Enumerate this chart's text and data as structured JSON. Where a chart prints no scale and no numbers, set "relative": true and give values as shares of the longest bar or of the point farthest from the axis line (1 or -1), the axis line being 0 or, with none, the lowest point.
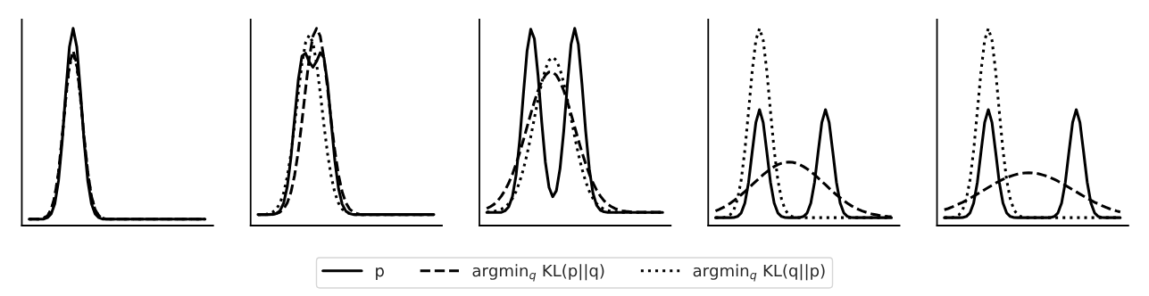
{
  "chart_data": [
    {
      "type": "line",
      "relative": true,
      "legend": "bottom",
      "categories": [
        null,
        null,
        null,
        null,
        null,
        null,
        null,
        null,
        null,
        null,
        null,
        null,
        null,
        null,
        null,
        null,
        null,
        null,
        null,
        null,
        null,
        null,
        null,
        null,
        null,
        null,
        null,
        null,
        null,
        null,
        null,
        null,
        null,
        null,
        null,
        null,
        null,
        null,
        null,
        null,
        null,
        null,
        null,
        null,
        null,
        null,
        null,
        null,
        null
      ],
      "series": [
        {
          "name": "p",
          "color": "#000000",
          "line_style": "solid",
          "values": [
            0.033,
            0.033,
            0.033,
            0.033,
            0.033,
            0.04,
            0.059,
            0.111,
            0.226,
            0.425,
            0.68,
            0.907,
            1.0,
            0.907,
            0.68,
            0.425,
            0.226,
            0.111,
            0.059,
            0.04,
            0.033,
            0.033,
            0.033,
            0.033,
            0.033,
            0.033,
            0.033,
            0.033,
            0.033,
            0.033,
            0.033,
            0.033,
            0.033,
            0.033,
            0.033,
            0.033,
            0.033,
            0.033,
            0.033,
            0.033,
            0.033,
            0.033,
            0.033,
            0.033,
            0.033,
            0.033,
            0.033,
            0.033,
            0.033
          ]
        },
        {
          "name": "argmin$_{q}$ KL(p||q)",
          "color": "#000000",
          "line_style": "dashed",
          "values": [
            0.033,
            0.033,
            0.033,
            0.033,
            0.038,
            0.05,
            0.081,
            0.148,
            0.27,
            0.448,
            0.652,
            0.82,
            0.886,
            0.82,
            0.652,
            0.448,
            0.27,
            0.148,
            0.081,
            0.05,
            0.038,
            0.033,
            0.033,
            0.033,
            0.033,
            0.033,
            0.033,
            0.033,
            0.033,
            0.033,
            0.033,
            0.033,
            0.033,
            0.033,
            0.033,
            0.033,
            0.033,
            0.033,
            0.033,
            0.033,
            0.033,
            0.033,
            0.033,
            0.033,
            0.033,
            0.033,
            0.033,
            0.033,
            0.033
          ]
        },
        {
          "name": "argmin$_{q}$ KL(q||p)",
          "color": "#000000",
          "line_style": "dotted",
          "values": [
            0.033,
            0.033,
            0.033,
            0.033,
            0.038,
            0.05,
            0.08,
            0.146,
            0.267,
            0.442,
            0.643,
            0.808,
            0.873,
            0.808,
            0.643,
            0.442,
            0.267,
            0.146,
            0.08,
            0.05,
            0.038,
            0.033,
            0.033,
            0.033,
            0.033,
            0.033,
            0.033,
            0.033,
            0.033,
            0.033,
            0.033,
            0.033,
            0.033,
            0.033,
            0.033,
            0.033,
            0.033,
            0.033,
            0.033,
            0.033,
            0.033,
            0.033,
            0.033,
            0.033,
            0.033,
            0.033,
            0.033,
            0.033,
            0.033
          ]
        }
      ]
    },
    {
      "type": "line",
      "relative": true,
      "categories": [
        null,
        null,
        null,
        null,
        null,
        null,
        null,
        null,
        null,
        null,
        null,
        null,
        null,
        null,
        null,
        null,
        null,
        null,
        null,
        null,
        null,
        null,
        null,
        null,
        null,
        null,
        null,
        null,
        null,
        null,
        null,
        null,
        null,
        null,
        null,
        null,
        null,
        null,
        null,
        null,
        null,
        null,
        null,
        null,
        null,
        null,
        null,
        null,
        null
      ],
      "series": [
        {
          "color": "#000000",
          "line_style": "solid",
          "values": [
            0.056,
            0.056,
            0.056,
            0.056,
            0.057,
            0.061,
            0.075,
            0.113,
            0.197,
            0.344,
            0.543,
            0.738,
            0.859,
            0.874,
            0.829,
            0.803,
            0.833,
            0.877,
            0.852,
            0.721,
            0.52,
            0.326,
            0.186,
            0.108,
            0.073,
            0.061,
            0.056,
            0.056,
            0.056,
            0.056,
            0.056,
            0.056,
            0.056,
            0.056,
            0.056,
            0.056,
            0.056,
            0.056,
            0.056,
            0.056,
            0.056,
            0.056,
            0.056,
            0.056,
            0.056,
            0.056,
            0.056,
            0.056,
            0.056
          ]
        },
        {
          "color": "#000000",
          "line_style": "dashed",
          "values": [
            0.056,
            0.056,
            0.056,
            0.056,
            0.056,
            0.061,
            0.068,
            0.084,
            0.115,
            0.169,
            0.255,
            0.376,
            0.528,
            0.695,
            0.85,
            0.96,
            1.0,
            0.96,
            0.85,
            0.695,
            0.528,
            0.376,
            0.255,
            0.169,
            0.115,
            0.084,
            0.068,
            0.061,
            0.056,
            0.056,
            0.056,
            0.056,
            0.056,
            0.056,
            0.056,
            0.056,
            0.056,
            0.056,
            0.056,
            0.056,
            0.056,
            0.056,
            0.056,
            0.056,
            0.056,
            0.056,
            0.056,
            0.056,
            0.056
          ]
        },
        {
          "color": "#000000",
          "line_style": "dotted",
          "values": [
            0.056,
            0.056,
            0.056,
            0.061,
            0.068,
            0.083,
            0.113,
            0.165,
            0.248,
            0.364,
            0.511,
            0.672,
            0.821,
            0.928,
            0.966,
            0.928,
            0.821,
            0.672,
            0.511,
            0.364,
            0.248,
            0.165,
            0.113,
            0.083,
            0.068,
            0.061,
            0.056,
            0.056,
            0.056,
            0.056,
            0.056,
            0.056,
            0.056,
            0.056,
            0.056,
            0.056,
            0.056,
            0.056,
            0.056,
            0.056,
            0.056,
            0.056,
            0.056,
            0.056,
            0.056,
            0.056,
            0.056,
            0.056,
            0.056
          ]
        }
      ]
    },
    {
      "type": "line",
      "relative": true,
      "categories": [
        null,
        null,
        null,
        null,
        null,
        null,
        null,
        null,
        null,
        null,
        null,
        null,
        null,
        null,
        null,
        null,
        null,
        null,
        null,
        null,
        null,
        null,
        null,
        null,
        null,
        null,
        null,
        null,
        null,
        null,
        null,
        null,
        null,
        null,
        null,
        null,
        null,
        null,
        null,
        null,
        null,
        null,
        null,
        null,
        null,
        null,
        null,
        null,
        null
      ],
      "series": [
        {
          "color": "#000000",
          "line_style": "solid",
          "values": [
            0.067,
            0.067,
            0.067,
            0.067,
            0.067,
            0.075,
            0.095,
            0.147,
            0.255,
            0.435,
            0.668,
            0.885,
            0.996,
            0.947,
            0.762,
            0.525,
            0.321,
            0.193,
            0.146,
            0.177,
            0.289,
            0.478,
            0.715,
            0.919,
            1.0,
            0.919,
            0.715,
            0.478,
            0.285,
            0.163,
            0.102,
            0.078,
            0.07,
            0.067,
            0.067,
            0.067,
            0.067,
            0.067,
            0.067,
            0.067,
            0.067,
            0.067,
            0.067,
            0.067,
            0.067,
            0.067,
            0.067,
            0.067,
            0.067
          ]
        },
        {
          "color": "#000000",
          "line_style": "dashed",
          "values": [
            0.086,
            0.096,
            0.108,
            0.126,
            0.15,
            0.179,
            0.216,
            0.26,
            0.313,
            0.37,
            0.434,
            0.5,
            0.566,
            0.629,
            0.685,
            0.73,
            0.762,
            0.779,
            0.779,
            0.762,
            0.73,
            0.685,
            0.629,
            0.566,
            0.5,
            0.434,
            0.37,
            0.313,
            0.26,
            0.216,
            0.179,
            0.15,
            0.126,
            0.108,
            0.096,
            0.086,
            0.079,
            0.075,
            0.072,
            0.07,
            0.068,
            0.068,
            0.068,
            0.068,
            0.068,
            0.068,
            0.068,
            0.068,
            0.068
          ]
        },
        {
          "color": "#000000",
          "line_style": "dotted",
          "values": [
            0.069,
            0.069,
            0.072,
            0.076,
            0.083,
            0.094,
            0.111,
            0.137,
            0.173,
            0.223,
            0.286,
            0.362,
            0.45,
            0.545,
            0.638,
            0.724,
            0.793,
            0.838,
            0.854,
            0.838,
            0.793,
            0.724,
            0.638,
            0.545,
            0.45,
            0.362,
            0.286,
            0.223,
            0.173,
            0.137,
            0.111,
            0.094,
            0.083,
            0.076,
            0.072,
            0.069,
            0.069,
            0.067,
            0.067,
            0.067,
            0.067,
            0.067,
            0.067,
            0.067,
            0.067,
            0.067,
            0.067,
            0.067,
            0.067
          ]
        }
      ]
    },
    {
      "type": "line",
      "relative": true,
      "categories": [
        null,
        null,
        null,
        null,
        null,
        null,
        null,
        null,
        null,
        null,
        null,
        null,
        null,
        null,
        null,
        null,
        null,
        null,
        null,
        null,
        null,
        null,
        null,
        null,
        null,
        null,
        null,
        null,
        null,
        null,
        null,
        null,
        null,
        null,
        null,
        null,
        null,
        null,
        null,
        null,
        null,
        null,
        null,
        null,
        null,
        null,
        null,
        null,
        null
      ],
      "series": [
        {
          "color": "#000000",
          "line_style": "solid",
          "values": [
            0.04,
            0.04,
            0.04,
            0.04,
            0.04,
            0.041,
            0.046,
            0.064,
            0.114,
            0.218,
            0.373,
            0.523,
            0.588,
            0.523,
            0.373,
            0.218,
            0.114,
            0.064,
            0.046,
            0.041,
            0.04,
            0.04,
            0.04,
            0.041,
            0.046,
            0.064,
            0.114,
            0.218,
            0.373,
            0.523,
            0.588,
            0.523,
            0.373,
            0.218,
            0.114,
            0.064,
            0.046,
            0.041,
            0.04,
            0.04,
            0.04,
            0.04,
            0.04,
            0.04,
            0.04,
            0.04,
            0.04,
            0.04,
            0.04
          ]
        },
        {
          "color": "#000000",
          "line_style": "dashed",
          "values": [
            0.074,
            0.082,
            0.091,
            0.101,
            0.113,
            0.126,
            0.141,
            0.156,
            0.172,
            0.189,
            0.207,
            0.224,
            0.241,
            0.258,
            0.273,
            0.287,
            0.299,
            0.309,
            0.316,
            0.321,
            0.322,
            0.321,
            0.316,
            0.309,
            0.299,
            0.287,
            0.273,
            0.258,
            0.241,
            0.224,
            0.207,
            0.189,
            0.172,
            0.156,
            0.141,
            0.126,
            0.113,
            0.101,
            0.091,
            0.082,
            0.074,
            0.068,
            0.062,
            0.057,
            0.054,
            0.05,
            0.048,
            0.046,
            0.045
          ]
        },
        {
          "color": "#000000",
          "line_style": "dotted",
          "values": [
            0.04,
            0.04,
            0.04,
            0.045,
            0.055,
            0.08,
            0.134,
            0.231,
            0.382,
            0.578,
            0.782,
            0.94,
            1.0,
            0.94,
            0.782,
            0.578,
            0.382,
            0.231,
            0.134,
            0.08,
            0.055,
            0.045,
            0.04,
            0.04,
            0.04,
            0.04,
            0.04,
            0.04,
            0.04,
            0.04,
            0.04,
            0.04,
            0.04,
            0.04,
            0.04,
            0.04,
            0.04,
            0.04,
            0.04,
            0.04,
            0.04,
            0.04,
            0.04,
            0.04,
            0.04,
            0.04,
            0.04,
            0.04,
            0.04
          ]
        }
      ]
    },
    {
      "type": "line",
      "relative": true,
      "categories": [
        null,
        null,
        null,
        null,
        null,
        null,
        null,
        null,
        null,
        null,
        null,
        null,
        null,
        null,
        null,
        null,
        null,
        null,
        null,
        null,
        null,
        null,
        null,
        null,
        null,
        null,
        null,
        null,
        null,
        null,
        null,
        null,
        null,
        null,
        null,
        null,
        null,
        null,
        null,
        null,
        null,
        null,
        null,
        null,
        null,
        null,
        null,
        null,
        null
      ],
      "series": [
        {
          "color": "#000000",
          "line_style": "solid",
          "values": [
            0.04,
            0.04,
            0.04,
            0.04,
            0.04,
            0.041,
            0.046,
            0.064,
            0.114,
            0.218,
            0.373,
            0.523,
            0.588,
            0.523,
            0.373,
            0.218,
            0.114,
            0.064,
            0.046,
            0.041,
            0.04,
            0.04,
            0.04,
            0.04,
            0.04,
            0.04,
            0.04,
            0.04,
            0.04,
            0.041,
            0.046,
            0.064,
            0.114,
            0.218,
            0.373,
            0.523,
            0.588,
            0.523,
            0.373,
            0.218,
            0.114,
            0.064,
            0.046,
            0.041,
            0.04,
            0.04,
            0.04,
            0.04,
            0.04
          ]
        },
        {
          "color": "#000000",
          "line_style": "dashed",
          "values": [
            0.08,
            0.086,
            0.093,
            0.101,
            0.11,
            0.118,
            0.128,
            0.138,
            0.149,
            0.16,
            0.171,
            0.182,
            0.193,
            0.204,
            0.215,
            0.225,
            0.234,
            0.243,
            0.25,
            0.256,
            0.261,
            0.265,
            0.267,
            0.268,
            0.267,
            0.265,
            0.261,
            0.256,
            0.25,
            0.243,
            0.234,
            0.225,
            0.215,
            0.204,
            0.193,
            0.182,
            0.171,
            0.16,
            0.149,
            0.138,
            0.128,
            0.118,
            0.11,
            0.101,
            0.093,
            0.086,
            0.08,
            0.074,
            0.069
          ]
        },
        {
          "color": "#000000",
          "line_style": "dotted",
          "values": [
            0.04,
            0.04,
            0.04,
            0.045,
            0.055,
            0.08,
            0.134,
            0.231,
            0.382,
            0.578,
            0.782,
            0.94,
            1.0,
            0.94,
            0.782,
            0.578,
            0.382,
            0.231,
            0.134,
            0.08,
            0.055,
            0.045,
            0.04,
            0.04,
            0.04,
            0.04,
            0.04,
            0.04,
            0.04,
            0.04,
            0.04,
            0.04,
            0.04,
            0.04,
            0.04,
            0.04,
            0.04,
            0.04,
            0.04,
            0.04,
            0.04,
            0.04,
            0.04,
            0.04,
            0.04,
            0.04,
            0.04,
            0.04,
            0.04
          ]
        }
      ]
    }
  ]
}
